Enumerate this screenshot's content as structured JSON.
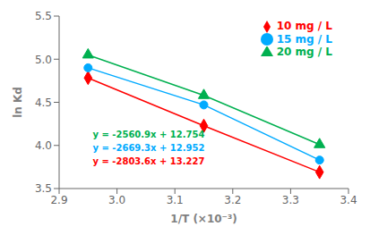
{
  "chart_data": {
    "type": "line",
    "xlabel": "1/T (×10⁻³)",
    "ylabel": "ln Kd",
    "xlim": [
      2.9,
      3.4
    ],
    "ylim": [
      3.5,
      5.5
    ],
    "xticks": [
      2.9,
      {
        "value": 3.0,
        "label": "3.0"
      },
      3.1,
      3.2,
      3.3,
      3.4
    ],
    "yticks": [
      3.5,
      {
        "value": 4.0,
        "label": "4.0"
      },
      4.5,
      {
        "value": 5.0,
        "label": "5.0"
      },
      5.5
    ],
    "grid": false,
    "legend": "upper right",
    "series": [
      {
        "name": "10 mg / L",
        "color": "#ff0000",
        "marker": "diamond",
        "x": [
          2.95,
          3.15,
          3.35
        ],
        "values": [
          4.783,
          4.228,
          3.69
        ]
      },
      {
        "name": "15 mg / L",
        "color": "#00aaff",
        "marker": "circle",
        "x": [
          2.95,
          3.15,
          3.35
        ],
        "values": [
          4.9,
          4.47,
          3.83
        ]
      },
      {
        "name": "20 mg / L",
        "color": "#00b050",
        "marker": "triangle",
        "x": [
          2.95,
          3.15,
          3.35
        ],
        "values": [
          5.05,
          4.58,
          4.01
        ]
      }
    ],
    "annotations": [
      {
        "text": "y = -2560.9x + 12.754",
        "color": "#00b050",
        "x": 2.958,
        "y": 4.13
      },
      {
        "text": "y = -2669.3x + 12.952",
        "color": "#00aaff",
        "x": 2.958,
        "y": 3.975
      },
      {
        "text": "y = -2803.6x + 13.227",
        "color": "#ff0000",
        "x": 2.958,
        "y": 3.82
      }
    ]
  }
}
